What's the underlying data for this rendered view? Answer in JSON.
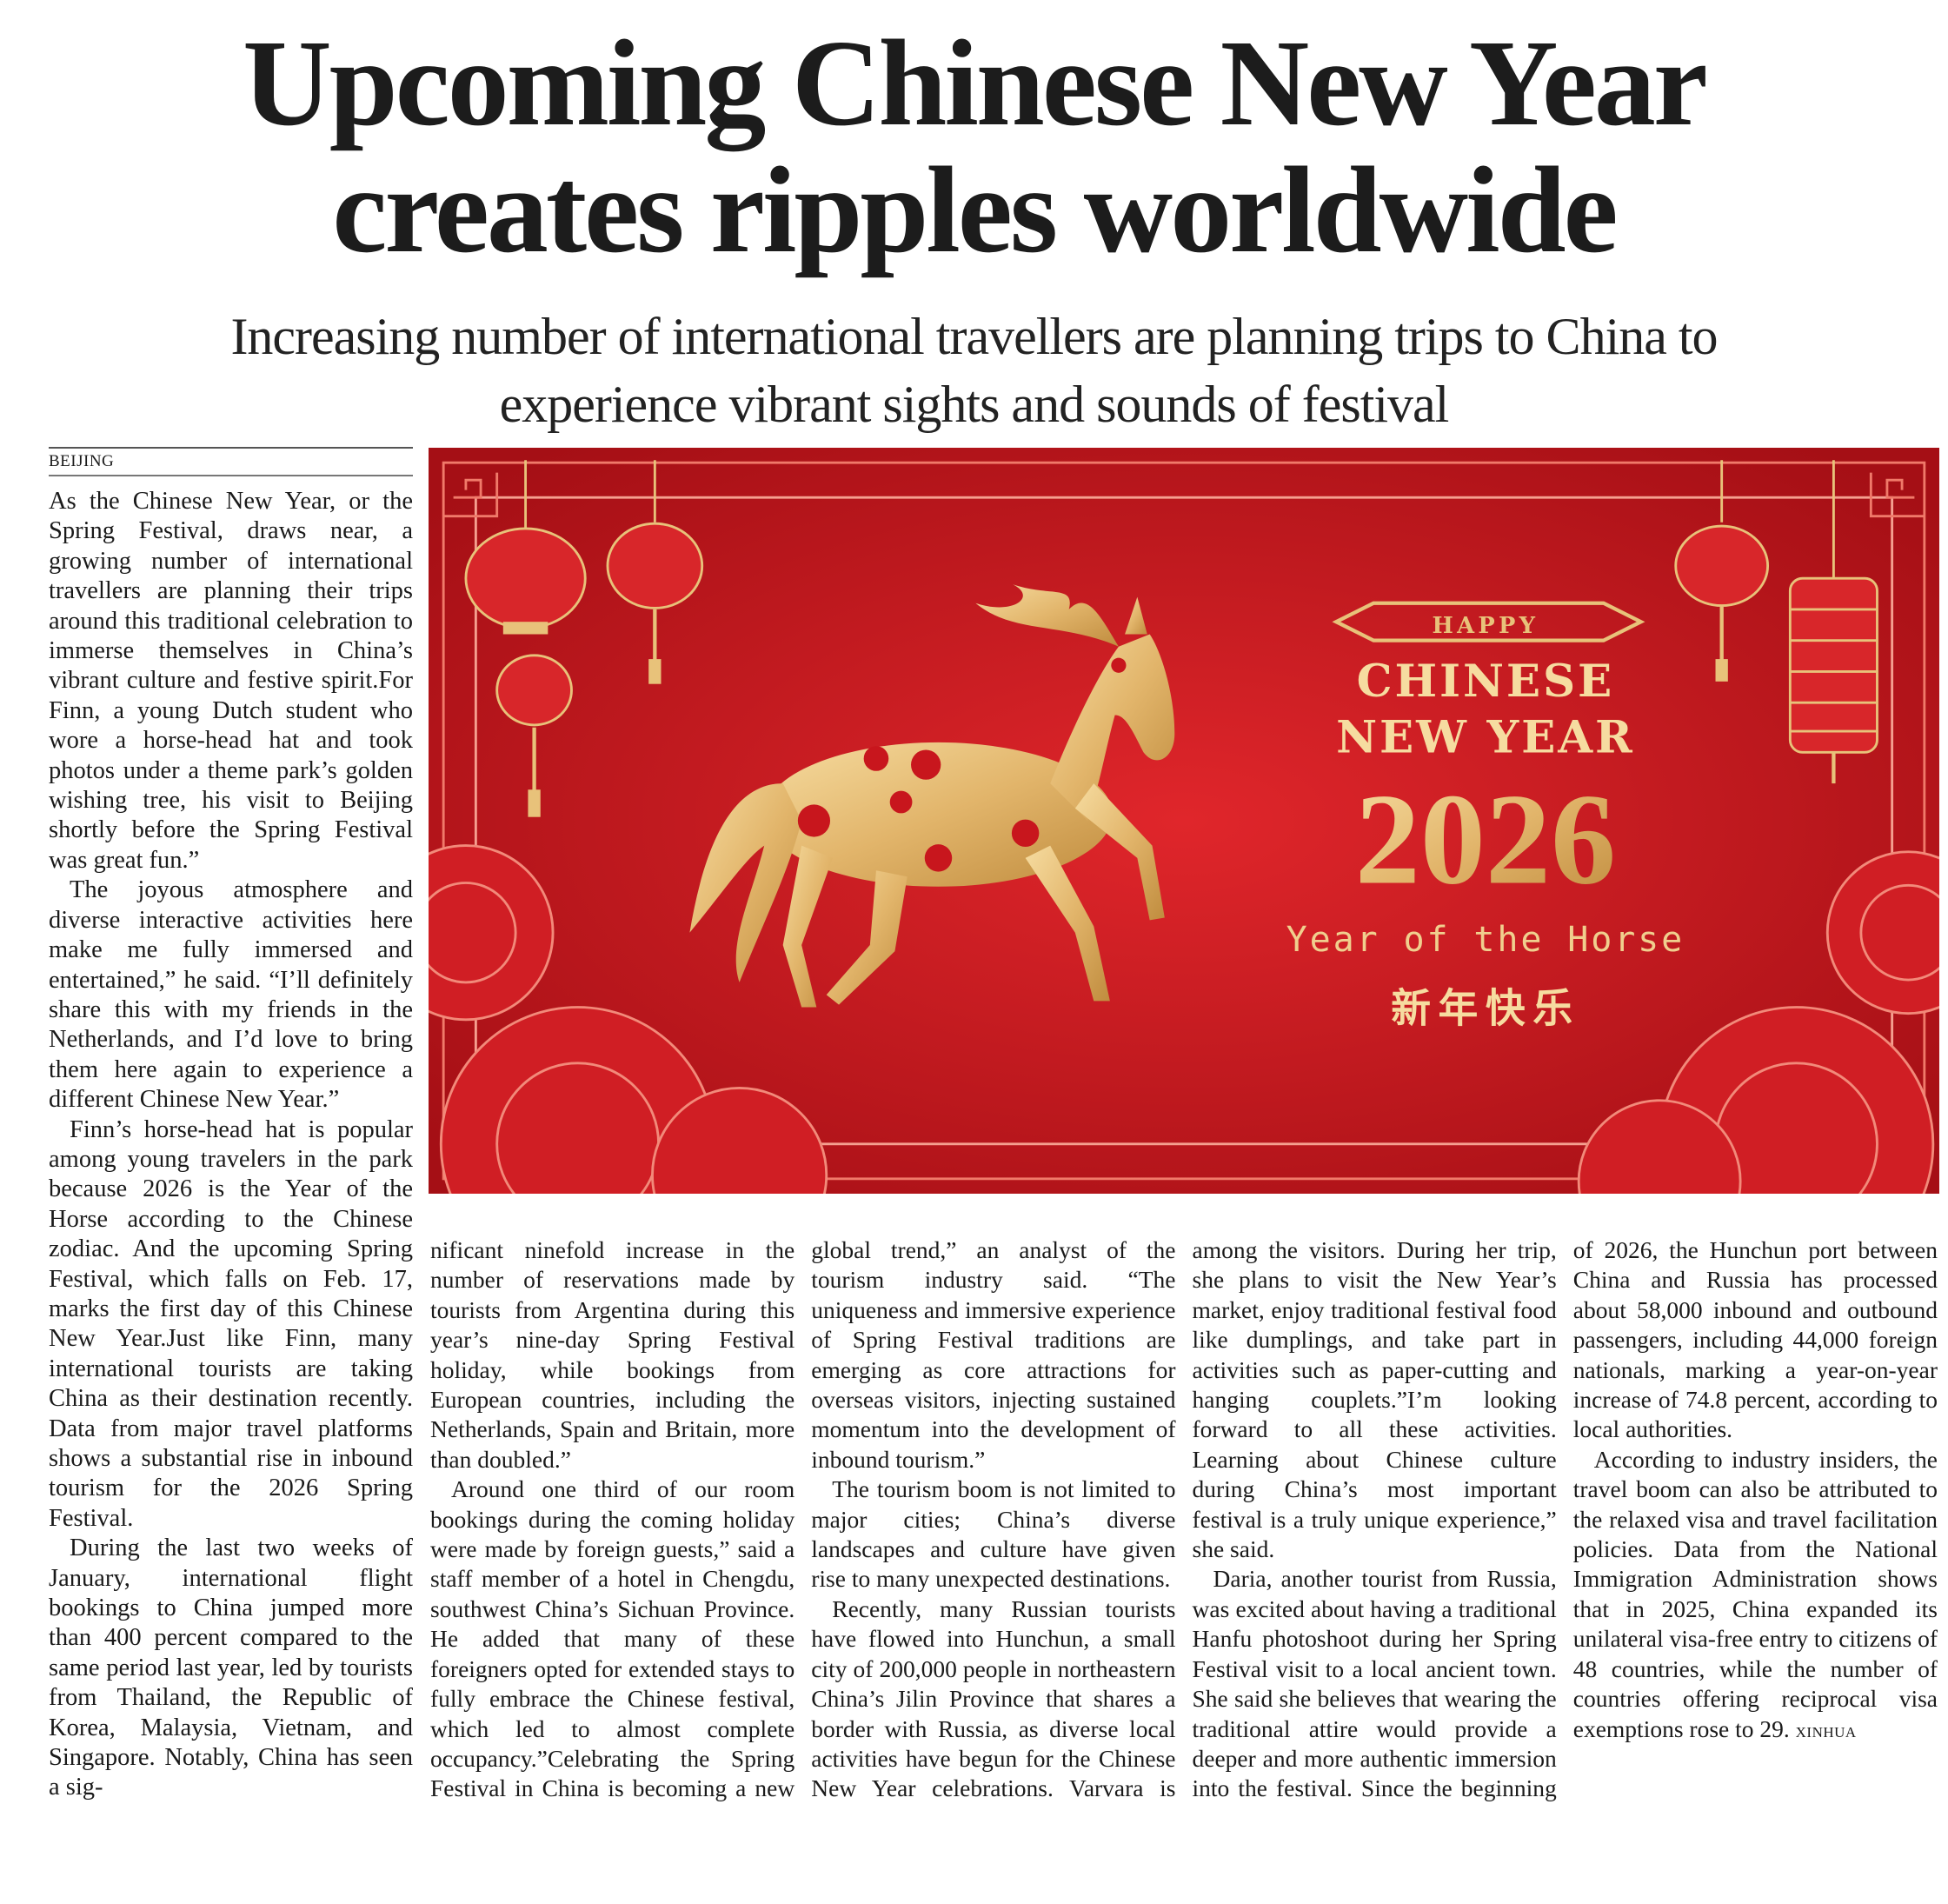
{
  "headline": {
    "line1": "Upcoming Chinese New Year",
    "line2": "creates ripples worldwide"
  },
  "subheadline": {
    "line1": "Increasing number of international travellers are planning trips to China to",
    "line2": "experience vibrant sights and sounds of festival"
  },
  "dateline": "BEIJING",
  "banner": {
    "happy": "HAPPY",
    "chinese": "CHINESE",
    "new_year": "NEW YEAR",
    "year": "2026",
    "year_of": "Year of the Horse",
    "greeting_cn": "新年快乐",
    "colors": {
      "red": "#c8161d",
      "deep_red": "#a50f15",
      "gold": "#e8c27a"
    }
  },
  "article": {
    "left_column": [
      "As the Chinese New Year, or the Spring Festival, draws near, a growing number of international travellers are planning their trips around this traditional celebration to immerse themselves in China’s vibrant culture and festive spirit.For Finn, a young Dutch student who wore a horse-head hat and took photos under a theme park’s golden wishing tree, his visit to Beijing shortly before the Spring Festival was great fun.”",
      "The joyous atmosphere and diverse interactive activities here make me fully immersed and entertained,” he said. “I’ll definitely share this with my friends in the Netherlands, and I’d love to bring them here again to experience a different Chinese New Year.”",
      "Finn’s horse-head hat is popular among young travelers in the park because 2026 is the Year of the Horse according to the Chinese zodiac. And the upcoming Spring Festival, which falls on Feb. 17, marks the first day of this Chinese New Year.Just like Finn, many international tourists are taking China as their destination recently. Data from major travel platforms shows a substantial rise in inbound tourism for the 2026 Spring Festival.",
      "During the last two weeks of January, international flight bookings to China jumped more than 400 percent compared to the same period last year, led by tourists from Thailand, the Republic of Korea, Malaysia, Vietnam, and Singapore. Notably, China has seen a sig-"
    ],
    "continued": "nificant ninefold increase in the number of reservations made by tourists from Argentina during this year’s nine-day Spring Festival holiday, while bookings from European countries, including the Netherlands, Spain and Britain, more than doubled.”",
    "paragraphs": [
      "Around one third of our room bookings during the coming holiday were made by foreign guests,” said a staff member of a hotel in Chengdu, southwest China’s Sichuan Province. He added that many of these foreigners opted for extended stays to fully embrace the Chinese festival, which led to almost complete occupancy.”Celebrating the Spring Festival in China is becoming a new global trend,” an analyst of the tourism industry said. “The uniqueness and immersive experience of Spring Festival traditions are emerging as core attractions for overseas visitors, injecting sustained momentum into the development of inbound tourism.”",
      "The tourism boom is not limited to major cities; China’s diverse landscapes and culture have given rise to many unexpected destinations.",
      "Recently, many Russian tourists have flowed into Hunchun, a small city of 200,000 people in northeastern China’s Jilin Province that shares a border with Russia, as diverse local activities have begun for the Chinese New Year celebrations. Varvara is among the visitors. During her trip, she plans to visit the New Year’s market, enjoy traditional festival food like dumplings, and take part in activities such as paper-cutting and hanging couplets.”I’m looking forward to all these activities. Learning about Chinese culture during China’s most important festival is a truly unique experience,” she said.",
      "Daria, another tourist from Russia, was excited about having a traditional Hanfu photoshoot during her Spring Festival visit to a local ancient town. She said she believes that wearing the traditional attire would provide a deeper and more authentic immersion into the festival. Since the beginning of 2026, the Hunchun port between China and Russia has processed about 58,000 inbound and outbound passengers, including 44,000 foreign nationals, marking a year-on-year increase of 74.8 percent, according to local authorities."
    ],
    "last_paragraph": "According to industry insiders, the travel boom can also be attributed to the relaxed visa and travel facilitation policies. Data from the National Immigration Administration shows that in 2025, China expanded its unilateral visa-free entry to citizens of 48 countries, while the number of countries offering reciprocal visa exemptions rose to 29.",
    "credit": "XINHUA"
  }
}
